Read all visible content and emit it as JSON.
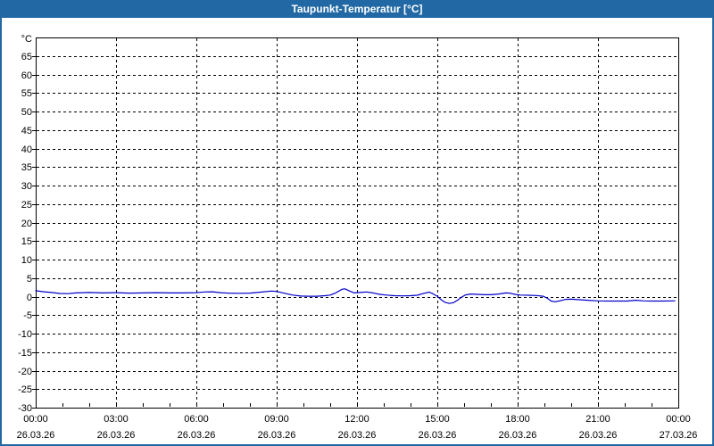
{
  "window": {
    "title": "Taupunkt-Temperatur [°C]"
  },
  "colors": {
    "titlebar": "#2168A4",
    "window_border": "#2168A4",
    "plot_border": "#000000",
    "grid": "#000000",
    "line": "#0000C8",
    "background": "#FFFFFF",
    "text": "#000000"
  },
  "chart_data": {
    "type": "line",
    "title": "Taupunkt-Temperatur [°C]",
    "y_unit_label": "°C",
    "xlabel": "",
    "ylabel": "°C",
    "ylim": [
      -30,
      70
    ],
    "y_ticks": [
      65,
      60,
      55,
      50,
      45,
      40,
      35,
      30,
      25,
      20,
      15,
      10,
      5,
      0,
      -5,
      -10,
      -15,
      -20,
      -25,
      -30
    ],
    "x_hours_range": [
      0,
      24
    ],
    "x_minor_tick_every_hours": 1,
    "grid": "dashed",
    "legend_position": "none",
    "x_ticks": [
      {
        "hour": 0,
        "time": "00:00",
        "date": "26.03.26",
        "gridline": false
      },
      {
        "hour": 3,
        "time": "03:00",
        "date": "26.03.26",
        "gridline": true
      },
      {
        "hour": 6,
        "time": "06:00",
        "date": "26.03.26",
        "gridline": true
      },
      {
        "hour": 9,
        "time": "09:00",
        "date": "26.03.26",
        "gridline": true
      },
      {
        "hour": 12,
        "time": "12:00",
        "date": "26.03.26",
        "gridline": true
      },
      {
        "hour": 15,
        "time": "15:00",
        "date": "26.03.26",
        "gridline": true
      },
      {
        "hour": 18,
        "time": "18:00",
        "date": "26.03.26",
        "gridline": true
      },
      {
        "hour": 21,
        "time": "21:00",
        "date": "26.03.26",
        "gridline": true
      },
      {
        "hour": 24,
        "time": "00:00",
        "date": "27.03.26",
        "gridline": false
      }
    ],
    "series": [
      {
        "name": "Taupunkt-Temperatur [°C]",
        "color": "#0000C8",
        "points": [
          [
            0.0,
            1.6
          ],
          [
            0.3,
            1.3
          ],
          [
            0.6,
            1.1
          ],
          [
            0.9,
            0.85
          ],
          [
            1.2,
            0.8
          ],
          [
            1.5,
            1.0
          ],
          [
            2.0,
            1.1
          ],
          [
            2.5,
            1.0
          ],
          [
            3.0,
            1.05
          ],
          [
            3.5,
            0.95
          ],
          [
            4.0,
            1.0
          ],
          [
            4.5,
            1.05
          ],
          [
            5.0,
            1.0
          ],
          [
            5.5,
            1.0
          ],
          [
            6.0,
            1.05
          ],
          [
            6.3,
            1.25
          ],
          [
            6.6,
            1.3
          ],
          [
            6.9,
            1.05
          ],
          [
            7.2,
            0.95
          ],
          [
            7.6,
            0.9
          ],
          [
            8.0,
            0.95
          ],
          [
            8.4,
            1.2
          ],
          [
            8.8,
            1.5
          ],
          [
            9.0,
            1.4
          ],
          [
            9.3,
            0.9
          ],
          [
            9.6,
            0.4
          ],
          [
            9.9,
            0.15
          ],
          [
            10.2,
            0.1
          ],
          [
            10.5,
            0.1
          ],
          [
            10.8,
            0.25
          ],
          [
            11.0,
            0.4
          ],
          [
            11.2,
            1.0
          ],
          [
            11.45,
            2.0
          ],
          [
            11.55,
            2.1
          ],
          [
            11.7,
            1.6
          ],
          [
            11.9,
            1.0
          ],
          [
            12.1,
            1.1
          ],
          [
            12.35,
            1.25
          ],
          [
            12.6,
            1.0
          ],
          [
            12.85,
            0.6
          ],
          [
            13.1,
            0.4
          ],
          [
            13.4,
            0.25
          ],
          [
            13.7,
            0.2
          ],
          [
            14.0,
            0.25
          ],
          [
            14.25,
            0.35
          ],
          [
            14.5,
            0.9
          ],
          [
            14.7,
            1.2
          ],
          [
            14.85,
            0.7
          ],
          [
            15.0,
            0.1
          ],
          [
            15.15,
            -0.9
          ],
          [
            15.3,
            -1.6
          ],
          [
            15.45,
            -1.85
          ],
          [
            15.6,
            -1.65
          ],
          [
            15.75,
            -1.0
          ],
          [
            15.9,
            -0.2
          ],
          [
            16.05,
            0.45
          ],
          [
            16.25,
            0.7
          ],
          [
            16.5,
            0.6
          ],
          [
            16.75,
            0.5
          ],
          [
            17.0,
            0.5
          ],
          [
            17.3,
            0.7
          ],
          [
            17.55,
            1.0
          ],
          [
            17.7,
            0.95
          ],
          [
            17.9,
            0.6
          ],
          [
            18.1,
            0.4
          ],
          [
            18.4,
            0.35
          ],
          [
            18.7,
            0.3
          ],
          [
            18.95,
            0.1
          ],
          [
            19.1,
            -0.4
          ],
          [
            19.25,
            -1.2
          ],
          [
            19.4,
            -1.4
          ],
          [
            19.6,
            -1.1
          ],
          [
            19.8,
            -0.75
          ],
          [
            20.0,
            -0.7
          ],
          [
            20.3,
            -0.85
          ],
          [
            20.6,
            -1.0
          ],
          [
            21.0,
            -1.15
          ],
          [
            21.4,
            -1.2
          ],
          [
            21.8,
            -1.2
          ],
          [
            22.1,
            -1.2
          ],
          [
            22.4,
            -1.0
          ],
          [
            22.7,
            -1.15
          ],
          [
            23.0,
            -1.2
          ],
          [
            23.4,
            -1.2
          ],
          [
            23.87,
            -1.15
          ]
        ]
      }
    ]
  }
}
